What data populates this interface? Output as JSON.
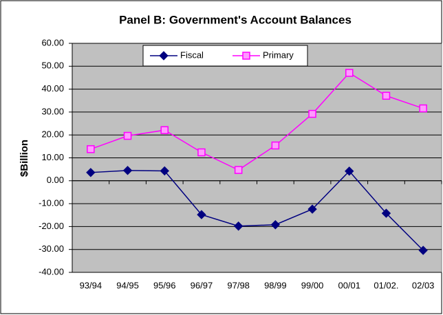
{
  "chart_data": {
    "type": "line",
    "title": "Panel B:  Government's Account Balances",
    "y_label": "$Billion",
    "categories": [
      "93/94",
      "94/95",
      "95/96",
      "96/97",
      "97/98",
      "98/99",
      "99/00",
      "00/01",
      "01/02.",
      "02/03"
    ],
    "series": [
      {
        "name": "Fiscal",
        "color": "#000080",
        "marker": "diamond",
        "values": [
          3.6,
          4.5,
          4.3,
          -14.8,
          -19.8,
          -19.2,
          -12.4,
          4.2,
          -14.2,
          -30.4
        ]
      },
      {
        "name": "Primary",
        "color": "#ff00ff",
        "marker": "square",
        "values": [
          13.8,
          19.6,
          22.1,
          12.4,
          4.7,
          15.4,
          29.2,
          47.1,
          37.1,
          31.6
        ]
      }
    ],
    "ylim": [
      -40,
      60
    ],
    "yticks": [
      {
        "value": -40,
        "label": "-40.00"
      },
      {
        "value": -30,
        "label": "-30.00"
      },
      {
        "value": -20,
        "label": "-20.00"
      },
      {
        "value": -10,
        "label": "-10.00"
      },
      {
        "value": 0,
        "label": "0.00"
      },
      {
        "value": 10,
        "label": "10.00"
      },
      {
        "value": 20,
        "label": "20.00"
      },
      {
        "value": 30,
        "label": "30.00"
      },
      {
        "value": 40,
        "label": "40.00"
      },
      {
        "value": 50,
        "label": "50.00"
      },
      {
        "value": 60,
        "label": "60.00"
      }
    ],
    "grid": true,
    "legend": "top"
  }
}
